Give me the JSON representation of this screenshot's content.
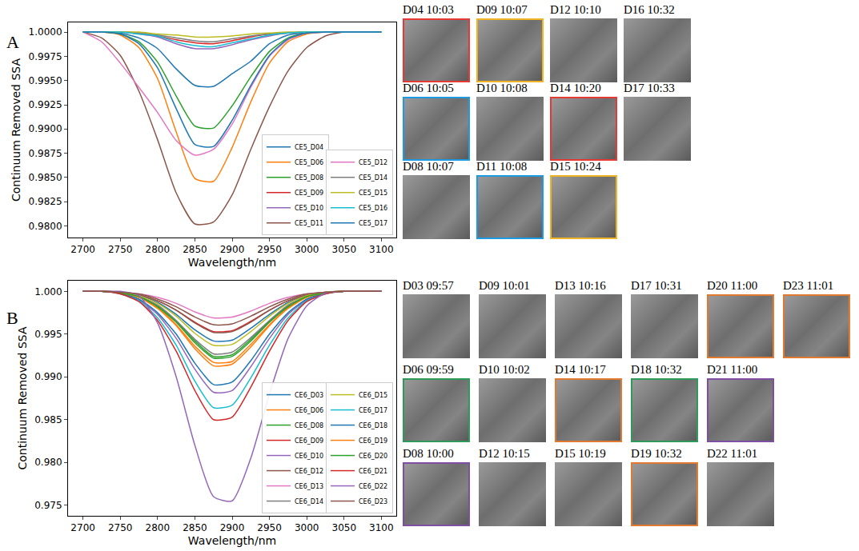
{
  "chart_data": [
    {
      "type": "line",
      "x_label": "Wavelength/nm",
      "y_label": "Continuum Removed SSA",
      "x": [
        2700,
        2725,
        2750,
        2775,
        2800,
        2825,
        2850,
        2875,
        2900,
        2925,
        2950,
        2975,
        3000,
        3025,
        3050,
        3075,
        3100
      ],
      "xlim": [
        2680,
        3120
      ],
      "xticks": [
        2700,
        2750,
        2800,
        2850,
        2900,
        2950,
        3000,
        3050,
        3100
      ],
      "ylim": [
        0.9788,
        1.001
      ],
      "yticks": [
        {
          "value": 0.98,
          "label": "0.9800"
        },
        0.9825,
        {
          "value": 0.985,
          "label": "0.9850"
        },
        0.9875,
        {
          "value": 0.99,
          "label": "0.9900"
        },
        0.9925,
        {
          "value": 0.995,
          "label": "0.9950"
        },
        0.9975,
        {
          "value": 1.0,
          "label": "1.0000"
        }
      ],
      "grid": false,
      "legend": "lower right",
      "series": [
        {
          "name": "CE5_D04",
          "color": "#1f77b4",
          "values": [
            1,
            1,
            0.9999,
            0.9994,
            0.9983,
            0.9962,
            0.9945,
            0.9944,
            0.9957,
            0.997,
            0.9988,
            0.9997,
            0.9999,
            1,
            1,
            1,
            1
          ]
        },
        {
          "name": "CE5_D06",
          "color": "#ff7f0e",
          "values": [
            1,
            1,
            0.9997,
            0.9984,
            0.9952,
            0.9897,
            0.9849,
            0.9846,
            0.9881,
            0.9928,
            0.9968,
            0.999,
            0.9998,
            1,
            1,
            1,
            1
          ]
        },
        {
          "name": "CE5_D08",
          "color": "#2ca02c",
          "values": [
            1,
            1,
            0.9998,
            0.999,
            0.9969,
            0.9934,
            0.9903,
            0.9901,
            0.9924,
            0.9954,
            0.998,
            0.9994,
            0.9999,
            1,
            1,
            1,
            1
          ]
        },
        {
          "name": "CE5_D09",
          "color": "#d62728",
          "values": [
            1,
            1,
            1,
            0.9999,
            0.9996,
            0.9992,
            0.9989,
            0.9988,
            0.9991,
            0.9995,
            0.9998,
            0.9999,
            1,
            1,
            1,
            1,
            1
          ]
        },
        {
          "name": "CE5_D10",
          "color": "#9467bd",
          "values": [
            1,
            1,
            1,
            0.9998,
            0.9995,
            0.9988,
            0.9983,
            0.9983,
            0.9987,
            0.9992,
            0.9996,
            0.9999,
            1,
            1,
            1,
            1,
            1
          ]
        },
        {
          "name": "CE5_D11",
          "color": "#8c564b",
          "values": [
            1,
            0.9994,
            0.9976,
            0.9939,
            0.9889,
            0.9834,
            0.9802,
            0.9804,
            0.9832,
            0.9879,
            0.9923,
            0.996,
            0.9984,
            0.9996,
            1,
            1,
            1
          ]
        },
        {
          "name": "CE5_D12",
          "color": "#e377c2",
          "values": [
            1,
            0.999,
            0.9968,
            0.9943,
            0.9917,
            0.9888,
            0.9873,
            0.9879,
            0.9905,
            0.9943,
            0.9975,
            0.9992,
            0.9999,
            1,
            1,
            1,
            1
          ]
        },
        {
          "name": "CE5_D14",
          "color": "#7f7f7f",
          "values": [
            1,
            1,
            1,
            0.9999,
            0.9997,
            0.9994,
            0.9991,
            0.999,
            0.9993,
            0.9996,
            0.9998,
            0.9999,
            1,
            1,
            1,
            1,
            1
          ]
        },
        {
          "name": "CE5_D15",
          "color": "#bcbd22",
          "values": [
            1,
            1,
            1,
            1,
            0.9998,
            0.9997,
            0.9995,
            0.9995,
            0.9996,
            0.9998,
            0.9999,
            1,
            1,
            1,
            1,
            1,
            1
          ]
        },
        {
          "name": "CE5_D16",
          "color": "#17becf",
          "values": [
            1,
            1,
            1,
            0.9998,
            0.9996,
            0.999,
            0.9986,
            0.9985,
            0.9989,
            0.9993,
            0.9997,
            0.9999,
            1,
            1,
            1,
            1,
            1
          ]
        },
        {
          "name": "CE5_D17",
          "color": "#1f77b4",
          "values": [
            1,
            1,
            0.9998,
            0.9988,
            0.9963,
            0.9921,
            0.9884,
            0.9882,
            0.9909,
            0.9945,
            0.9976,
            0.9993,
            0.9999,
            1,
            1,
            1,
            1
          ]
        }
      ]
    },
    {
      "type": "line",
      "x_label": "Wavelength/nm",
      "y_label": "Continuum Removed SSA",
      "x": [
        2700,
        2725,
        2750,
        2775,
        2800,
        2825,
        2850,
        2875,
        2900,
        2925,
        2950,
        2975,
        3000,
        3025,
        3050,
        3075,
        3100
      ],
      "xlim": [
        2680,
        3120
      ],
      "xticks": [
        2700,
        2750,
        2800,
        2850,
        2900,
        2950,
        3000,
        3050,
        3100
      ],
      "ylim": [
        0.97375,
        1.00125
      ],
      "yticks": [
        0.975,
        {
          "value": 0.98,
          "label": "0.980"
        },
        0.985,
        {
          "value": 0.99,
          "label": "0.990"
        },
        0.995,
        {
          "value": 1.0,
          "label": "1.000"
        }
      ],
      "grid": false,
      "legend": "lower right",
      "series": [
        {
          "name": "CE6_D03",
          "color": "#1f77b4",
          "values": [
            1,
            1,
            0.9999,
            0.9995,
            0.9987,
            0.9973,
            0.9955,
            0.9942,
            0.9943,
            0.9957,
            0.9973,
            0.9987,
            0.9995,
            0.9999,
            1,
            1,
            1
          ]
        },
        {
          "name": "CE6_D06",
          "color": "#ff7f0e",
          "values": [
            1,
            1,
            0.9998,
            0.9993,
            0.998,
            0.996,
            0.9933,
            0.9913,
            0.9915,
            0.9935,
            0.996,
            0.998,
            0.9993,
            0.9998,
            1,
            1,
            1
          ]
        },
        {
          "name": "CE6_D08",
          "color": "#2ca02c",
          "values": [
            1,
            1,
            0.9998,
            0.9994,
            0.9983,
            0.9965,
            0.9942,
            0.9924,
            0.9926,
            0.9944,
            0.9965,
            0.9983,
            0.9994,
            0.9998,
            1,
            1,
            1
          ]
        },
        {
          "name": "CE6_D09",
          "color": "#d62728",
          "values": [
            1,
            1,
            0.9999,
            0.9996,
            0.9989,
            0.9978,
            0.9964,
            0.9953,
            0.9954,
            0.9965,
            0.9978,
            0.9989,
            0.9996,
            0.9999,
            1,
            1,
            1
          ]
        },
        {
          "name": "CE6_D10",
          "color": "#9467bd",
          "values": [
            1,
            1,
            0.9998,
            0.999,
            0.9973,
            0.9945,
            0.9909,
            0.9882,
            0.9884,
            0.9912,
            0.9945,
            0.9973,
            0.999,
            0.9998,
            1,
            1,
            1
          ]
        },
        {
          "name": "CE6_D12",
          "color": "#8c564b",
          "values": [
            1,
            1,
            0.9999,
            0.9996,
            0.9989,
            0.9978,
            0.9963,
            0.9952,
            0.9953,
            0.9964,
            0.9978,
            0.9989,
            0.9996,
            0.9999,
            1,
            1,
            1
          ]
        },
        {
          "name": "CE6_D13",
          "color": "#e377c2",
          "values": [
            1,
            1,
            0.9999,
            0.9997,
            0.9993,
            0.9986,
            0.9976,
            0.9969,
            0.997,
            0.9977,
            0.9986,
            0.9993,
            0.9997,
            0.9999,
            1,
            1,
            1
          ]
        },
        {
          "name": "CE6_D14",
          "color": "#7f7f7f",
          "values": [
            1,
            1,
            0.9999,
            0.9994,
            0.9984,
            0.9966,
            0.9944,
            0.9927,
            0.9929,
            0.9946,
            0.9966,
            0.9984,
            0.9994,
            0.9999,
            1,
            1,
            1
          ]
        },
        {
          "name": "CE6_D15",
          "color": "#bcbd22",
          "values": [
            1,
            1,
            0.9999,
            0.9995,
            0.9986,
            0.9971,
            0.9951,
            0.9937,
            0.9938,
            0.9953,
            0.9971,
            0.9986,
            0.9995,
            0.9999,
            1,
            1,
            1
          ]
        },
        {
          "name": "CE6_D17",
          "color": "#17becf",
          "values": [
            1,
            1,
            0.9997,
            0.9989,
            0.9969,
            0.9937,
            0.9895,
            0.9864,
            0.9867,
            0.9899,
            0.9937,
            0.9969,
            0.9989,
            0.9997,
            1,
            1,
            1
          ]
        },
        {
          "name": "CE6_D18",
          "color": "#1f77b4",
          "values": [
            1,
            1,
            0.9998,
            0.9991,
            0.9975,
            0.995,
            0.9916,
            0.9891,
            0.9894,
            0.9919,
            0.995,
            0.9975,
            0.9991,
            0.9998,
            1,
            1,
            1
          ]
        },
        {
          "name": "CE6_D19",
          "color": "#ff7f0e",
          "values": [
            1,
            1,
            0.9998,
            0.9993,
            0.9981,
            0.9961,
            0.9936,
            0.9917,
            0.9918,
            0.9938,
            0.9961,
            0.9981,
            0.9993,
            0.9998,
            1,
            1,
            1
          ]
        },
        {
          "name": "CE6_D20",
          "color": "#2ca02c",
          "values": [
            1,
            1,
            0.9998,
            0.9994,
            0.9982,
            0.9964,
            0.994,
            0.9922,
            0.9924,
            0.9942,
            0.9964,
            0.9982,
            0.9994,
            0.9998,
            1,
            1,
            1
          ]
        },
        {
          "name": "CE6_D21",
          "color": "#d62728",
          "values": [
            1,
            1,
            0.9997,
            0.9988,
            0.9966,
            0.993,
            0.9884,
            0.985,
            0.9853,
            0.9888,
            0.993,
            0.9966,
            0.9988,
            0.9997,
            1,
            1,
            1
          ]
        },
        {
          "name": "CE6_D22",
          "color": "#9467bd",
          "values": [
            1,
            1,
            1,
            0.9995,
            0.9963,
            0.99,
            0.982,
            0.976,
            0.9755,
            0.9805,
            0.988,
            0.9945,
            0.9983,
            0.9998,
            1,
            1,
            1
          ]
        },
        {
          "name": "CE6_D23",
          "color": "#8c564b",
          "values": [
            1,
            1,
            0.9999,
            0.9997,
            0.9991,
            0.9982,
            0.997,
            0.9961,
            0.9962,
            0.9971,
            0.9982,
            0.9991,
            0.9997,
            0.9999,
            1,
            1,
            1
          ]
        }
      ]
    }
  ],
  "panels": [
    {
      "letter": "A",
      "tiles": [
        [
          {
            "label": "D04 10:03",
            "color": "#e53935"
          },
          {
            "label": "D09 10:07",
            "color": "#f0b323"
          },
          {
            "label": "D12 10:10"
          },
          {
            "label": "D16 10:32"
          }
        ],
        [
          {
            "label": "D06 10:05",
            "color": "#1e9be0"
          },
          {
            "label": "D10 10:08"
          },
          {
            "label": "D14 10:20",
            "color": "#e53935"
          },
          {
            "label": "D17 10:33"
          }
        ],
        [
          {
            "label": "D08 10:07"
          },
          {
            "label": "D11 10:08",
            "color": "#1e9be0"
          },
          {
            "label": "D15 10:24",
            "color": "#f0b323"
          }
        ]
      ]
    },
    {
      "letter": "B",
      "tiles": [
        [
          {
            "label": "D03 09:57"
          },
          {
            "label": "D09 10:01"
          },
          {
            "label": "D13 10:16"
          },
          {
            "label": "D17 10:31"
          },
          {
            "label": "D20 11:00",
            "color": "#e07a30"
          },
          {
            "label": "D23 11:01",
            "color": "#e07a30"
          }
        ],
        [
          {
            "label": "D06 09:59",
            "color": "#2e9a5a"
          },
          {
            "label": "D10 10:02"
          },
          {
            "label": "D14 10:17",
            "color": "#e07a30"
          },
          {
            "label": "D18 10:32",
            "color": "#2e9a5a"
          },
          {
            "label": "D21 11:00",
            "color": "#7e4fa0"
          }
        ],
        [
          {
            "label": "D08 10:00",
            "color": "#7e4fa0"
          },
          {
            "label": "D12 10:15"
          },
          {
            "label": "D15 10:19"
          },
          {
            "label": "D19 10:32",
            "color": "#e07a30"
          },
          {
            "label": "D22 11:01"
          }
        ]
      ]
    }
  ]
}
